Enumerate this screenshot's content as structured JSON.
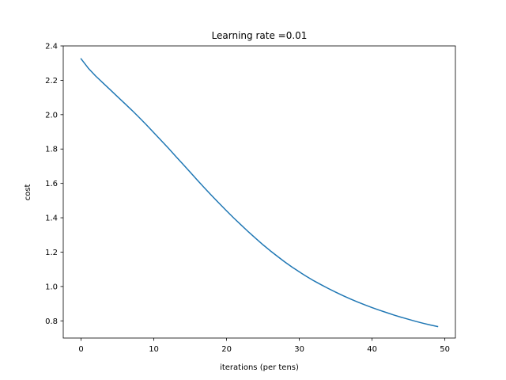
{
  "chart_data": {
    "type": "line",
    "title": "Learning rate =0.01",
    "xlabel": "iterations (per tens)",
    "ylabel": "cost",
    "xlim": [
      -2.45,
      51.45
    ],
    "ylim": [
      0.7,
      2.4
    ],
    "xticks": [
      0,
      10,
      20,
      30,
      40,
      50
    ],
    "yticks": [
      0.8,
      1.0,
      1.2,
      1.4,
      1.6,
      1.8,
      2.0,
      2.2,
      2.4
    ],
    "xtick_labels": [
      "0",
      "10",
      "20",
      "30",
      "40",
      "50"
    ],
    "ytick_labels": [
      "0.8",
      "1.0",
      "1.2",
      "1.4",
      "1.6",
      "1.8",
      "2.0",
      "2.2",
      "2.4"
    ],
    "grid": false,
    "series": [
      {
        "color": "#1f77b4",
        "x": [
          0,
          1,
          2,
          3,
          4,
          5,
          6,
          7,
          8,
          9,
          10,
          11,
          12,
          13,
          14,
          15,
          16,
          17,
          18,
          19,
          20,
          21,
          22,
          23,
          24,
          25,
          26,
          27,
          28,
          29,
          30,
          31,
          32,
          33,
          34,
          35,
          36,
          37,
          38,
          39,
          40,
          41,
          42,
          43,
          44,
          45,
          46,
          47,
          48,
          49
        ],
        "y": [
          2.325,
          2.27,
          2.225,
          2.185,
          2.145,
          2.105,
          2.065,
          2.025,
          1.983,
          1.94,
          1.895,
          1.85,
          1.805,
          1.758,
          1.712,
          1.665,
          1.618,
          1.572,
          1.527,
          1.483,
          1.44,
          1.398,
          1.358,
          1.318,
          1.28,
          1.243,
          1.208,
          1.175,
          1.143,
          1.113,
          1.085,
          1.058,
          1.033,
          1.01,
          0.988,
          0.967,
          0.947,
          0.928,
          0.91,
          0.893,
          0.877,
          0.862,
          0.848,
          0.834,
          0.821,
          0.809,
          0.797,
          0.786,
          0.776,
          0.767
        ]
      }
    ]
  }
}
